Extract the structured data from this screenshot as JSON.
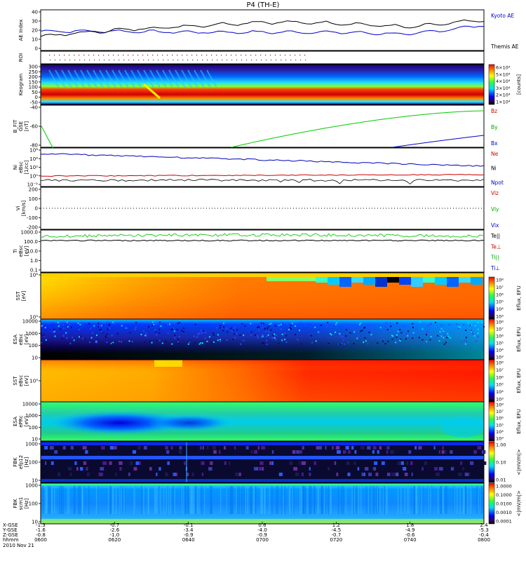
{
  "title": "P4 (TH-E)",
  "panels": [
    {
      "id": "ae",
      "ylabel": [
        "AE Index"
      ],
      "ticks": [
        "40",
        "30",
        "20",
        "10",
        "0"
      ],
      "legend": [
        {
          "text": "Kyoto AE",
          "color": "#0000cc"
        },
        {
          "text": "Themis AE",
          "color": "#000000"
        }
      ]
    },
    {
      "id": "roi",
      "ylabel": [
        "ROI"
      ],
      "ticks": [],
      "legend": []
    },
    {
      "id": "keogram",
      "ylabel": [
        "Keogram"
      ],
      "ticks": [
        "300",
        "250",
        "200",
        "150",
        "100",
        "50",
        "0",
        "-50"
      ],
      "legend": []
    },
    {
      "id": "bfit",
      "ylabel": [
        "B_FIT",
        "GSE",
        "[nT]"
      ],
      "ticks": [
        "-40",
        "-60",
        "-80"
      ],
      "legend": [
        {
          "text": "Bz",
          "color": "#cc0000"
        },
        {
          "text": "By",
          "color": "#00aa00"
        },
        {
          "text": "Bx",
          "color": "#0000cc"
        }
      ]
    },
    {
      "id": "ni",
      "ylabel": [
        "Ni",
        "eBsc",
        "[1/cc]"
      ],
      "ticks": [
        "10⁶",
        "10⁴",
        "10²",
        "10⁰",
        "10⁻²"
      ],
      "legend": [
        {
          "text": "Ne",
          "color": "#cc0000"
        },
        {
          "text": "Ni",
          "color": "#000000"
        },
        {
          "text": "Npot",
          "color": "#0000cc"
        }
      ]
    },
    {
      "id": "vi",
      "ylabel": [
        "Vi",
        "[km/s]"
      ],
      "ticks": [
        "200",
        "100",
        "0",
        "-100",
        "-200"
      ],
      "legend": [
        {
          "text": "Viz",
          "color": "#cc0000"
        },
        {
          "text": "Viy",
          "color": "#00aa00"
        },
        {
          "text": "Vix",
          "color": "#0000cc"
        }
      ]
    },
    {
      "id": "ti",
      "ylabel": [
        "Ti",
        "eBsc",
        "[eV]"
      ],
      "ticks": [
        "1000.0",
        "100.0",
        "10.0",
        "1.0",
        "0.1"
      ],
      "legend": [
        {
          "text": "Te||",
          "color": "#000000"
        },
        {
          "text": "Te⊥",
          "color": "#cc0000"
        },
        {
          "text": "Ti||",
          "color": "#00aa00"
        },
        {
          "text": "Ti⊥",
          "color": "#0000cc"
        }
      ]
    },
    {
      "id": "sst_e",
      "ylabel": [
        "SST",
        "[eV]"
      ],
      "ticks": [
        "10⁶",
        "10⁵"
      ],
      "legend": []
    },
    {
      "id": "esa_e",
      "ylabel": [
        "ESA",
        "eBsc",
        "[eV]"
      ],
      "ticks": [
        "10000",
        "1000",
        "100",
        "10"
      ],
      "legend": []
    },
    {
      "id": "sst_i",
      "ylabel": [
        "SST",
        "eBsc",
        "[eV]"
      ],
      "ticks": [
        "10⁵"
      ],
      "legend": []
    },
    {
      "id": "esa_i",
      "ylabel": [
        "ESA",
        "ePRc",
        "[eV]"
      ],
      "ticks": [
        "10000",
        "1000",
        "100",
        "10"
      ],
      "legend": []
    },
    {
      "id": "fbk_e",
      "ylabel": [
        "FBK",
        "efp12",
        "[Hz]"
      ],
      "ticks": [
        "1000",
        "100",
        "10"
      ],
      "legend": []
    },
    {
      "id": "fbk_b",
      "ylabel": [
        "FBK",
        "scm1",
        "[Hz]"
      ],
      "ticks": [
        "1000",
        "100",
        "10"
      ],
      "legend": []
    }
  ],
  "colorbars": [
    {
      "id": "cb_keogram",
      "ticks": [
        "6×10⁴",
        "5×10⁴",
        "4×10⁴",
        "3×10⁴",
        "2×10⁴",
        "1×10⁴"
      ],
      "label": "[counts]"
    },
    {
      "id": "cb_sst_e",
      "ticks": [
        "10⁸",
        "10⁷",
        "10⁶",
        "10⁵",
        "10⁴",
        "10³"
      ],
      "label": "Eflux, EFU"
    },
    {
      "id": "cb_esa_e",
      "ticks": [
        "10⁸",
        "10⁷",
        "10⁶",
        "10⁵",
        "10⁴",
        "10³"
      ],
      "label": "Eflux, EFU"
    },
    {
      "id": "cb_sst_i",
      "ticks": [
        "10⁸",
        "10⁷",
        "10⁶",
        "10⁵",
        "10⁴",
        "10³"
      ],
      "label": "Eflux, EFU"
    },
    {
      "id": "cb_esa_i",
      "ticks": [
        "10⁸",
        "10⁷",
        "10⁶",
        "10⁵",
        "10⁴",
        "10³"
      ],
      "label": "Eflux, EFU"
    },
    {
      "id": "cb_fbk_e",
      "ticks": [
        "1.00",
        "0.10",
        "0.01"
      ],
      "label": "<|mV/m|>"
    },
    {
      "id": "cb_fbk_b",
      "ticks": [
        "1.0000",
        "0.1000",
        "0.0100",
        "0.0010",
        "0.0001"
      ],
      "label": "<|mV/m|>"
    }
  ],
  "xaxis": {
    "row_labels": [
      "X-GSE",
      "Y-GSE",
      "Z-GSE",
      "hhmm",
      "2010 Nov 21"
    ],
    "columns": [
      {
        "x": "-1.3",
        "y": "-1.6",
        "z": "-0.8",
        "t": "0600"
      },
      {
        "x": "-0.7",
        "y": "-2.6",
        "z": "-1.0",
        "t": "0620"
      },
      {
        "x": "-0.1",
        "y": "-3.4",
        "z": "-0.9",
        "t": "0640"
      },
      {
        "x": "0.6",
        "y": "-4.0",
        "z": "-0.9",
        "t": "0700"
      },
      {
        "x": "1.2",
        "y": "-4.5",
        "z": "-0.7",
        "t": "0720"
      },
      {
        "x": "1.8",
        "y": "-4.9",
        "z": "-0.6",
        "t": "0740"
      },
      {
        "x": "2.4",
        "y": "-5.3",
        "z": "-0.4",
        "t": "0800"
      }
    ]
  },
  "chart_data": {
    "type": "line",
    "title": "P4 (TH-E)",
    "x": [
      "0600",
      "0620",
      "0640",
      "0700",
      "0720",
      "0740",
      "0800"
    ],
    "series": [
      {
        "name": "Kyoto AE",
        "panel": "AE Index",
        "values": [
          19,
          19,
          18,
          18,
          18,
          16,
          25
        ]
      },
      {
        "name": "Themis AE",
        "panel": "AE Index",
        "values": [
          14,
          20,
          24,
          28,
          27,
          23,
          30
        ]
      },
      {
        "name": "By",
        "panel": "B_FIT GSE [nT]",
        "values": [
          -55,
          null,
          null,
          -85,
          -55,
          -45,
          -38
        ]
      },
      {
        "name": "Bx",
        "panel": "B_FIT GSE [nT]",
        "values": [
          null,
          null,
          null,
          null,
          null,
          null,
          -72
        ]
      }
    ],
    "ae_ylim": [
      0,
      40
    ],
    "bfit_ylim": [
      -90,
      -30
    ]
  }
}
